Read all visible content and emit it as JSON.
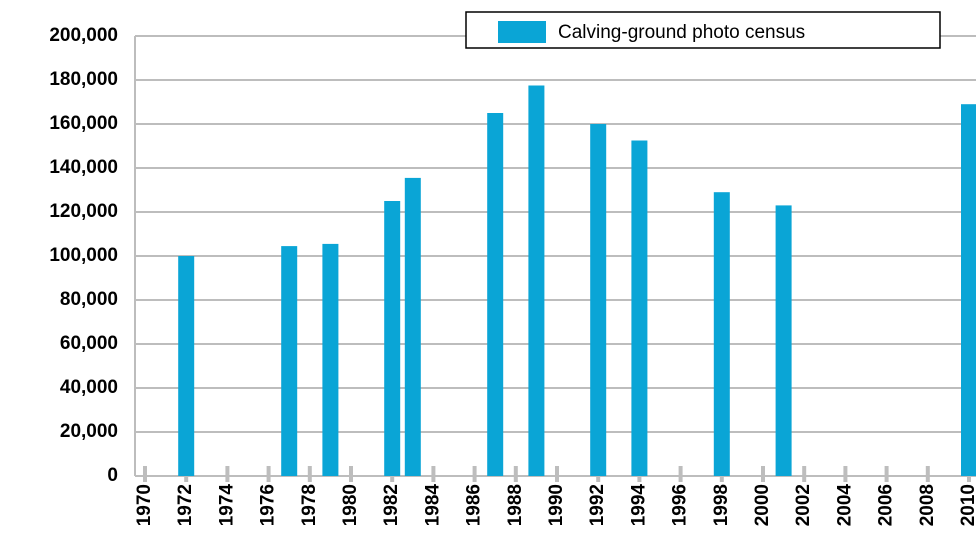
{
  "chart_data": {
    "type": "bar",
    "x": [
      1972,
      1977,
      1979,
      1982,
      1983,
      1987,
      1989,
      1992,
      1994,
      1998,
      2001,
      2010
    ],
    "series": [
      {
        "name": "Calving-ground photo census",
        "color": "#0aa5d6",
        "values": [
          100000,
          104500,
          105500,
          125000,
          135500,
          165000,
          177500,
          160000,
          152500,
          129000,
          123000,
          169000
        ]
      }
    ],
    "ylim": [
      0,
      200000
    ],
    "yticks": [
      {
        "value": 0,
        "label": "0"
      },
      {
        "value": 20000,
        "label": "20,000"
      },
      {
        "value": 40000,
        "label": "40,000"
      },
      {
        "value": 60000,
        "label": "60,000"
      },
      {
        "value": 80000,
        "label": "80,000"
      },
      {
        "value": 100000,
        "label": "100,000"
      },
      {
        "value": 120000,
        "label": "120,000"
      },
      {
        "value": 140000,
        "label": "140,000"
      },
      {
        "value": 160000,
        "label": "160,000"
      },
      {
        "value": 180000,
        "label": "180,000"
      },
      {
        "value": 200000,
        "label": "200,000"
      }
    ],
    "xlim": [
      1969,
      2011
    ],
    "xticks": [
      1970,
      1972,
      1974,
      1976,
      1978,
      1980,
      1982,
      1984,
      1986,
      1988,
      1990,
      1992,
      1994,
      1996,
      1998,
      2000,
      2002,
      2004,
      2006,
      2008,
      2010
    ],
    "grid": true,
    "legend": "upper right"
  }
}
